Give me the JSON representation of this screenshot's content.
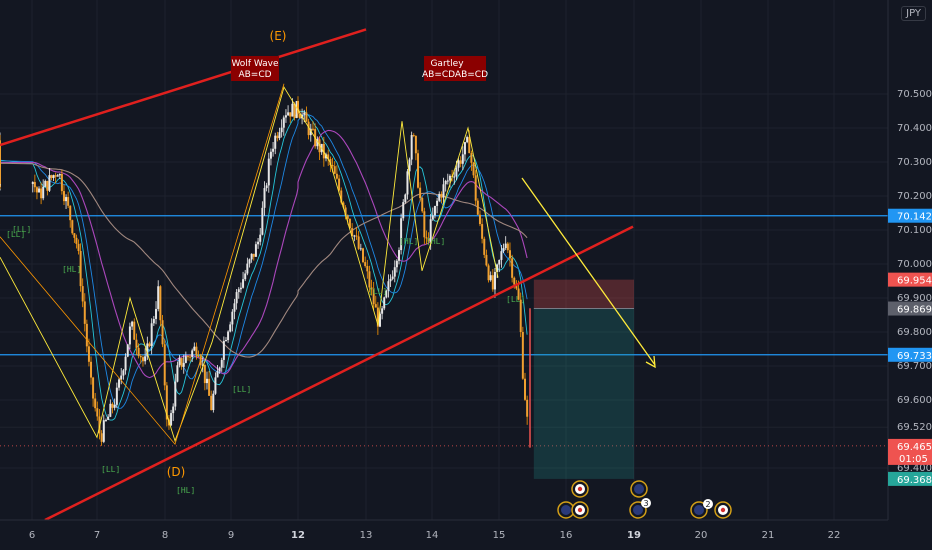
{
  "currency": "JPY",
  "chart_data": {
    "type": "candlestick",
    "y_ticks": [
      "70.500",
      "70.400",
      "70.300",
      "70.200",
      "70.100",
      "70.000",
      "69.900",
      "69.800",
      "69.700",
      "69.600",
      "69.520",
      "69.400"
    ],
    "x_ticks": [
      "6",
      "7",
      "8",
      "9",
      "12",
      "13",
      "14",
      "15",
      "16",
      "19",
      "20",
      "21",
      "22"
    ],
    "bold_x_ticks": [
      "12",
      "19"
    ],
    "ylim": [
      69.3,
      70.58
    ],
    "price_tags": [
      {
        "value": 70.142,
        "label": "70.142",
        "color": "#2196f3"
      },
      {
        "value": 69.954,
        "label": "69.954",
        "color": "#ef5350"
      },
      {
        "value": 69.869,
        "label": "69.869",
        "color": "#5d606b"
      },
      {
        "value": 69.733,
        "label": "69.733",
        "color": "#2196f3"
      },
      {
        "value": 69.465,
        "label": "69.465",
        "color": "#ef5350"
      },
      {
        "value": 69.368,
        "label": "69.368",
        "color": "#26a69a"
      }
    ],
    "countdown": "01:05",
    "horizontal_lines": [
      70.142,
      69.733
    ],
    "position": {
      "entry": 69.869,
      "stop": 69.954,
      "target": 69.368,
      "x_from": 15.52,
      "x_to": 17.73
    },
    "annotations": [
      {
        "label": "Wolf Wave",
        "sub": "AB=CD"
      },
      {
        "label": "Gartley",
        "sub": "AB=CDAB=CD"
      }
    ],
    "wave_points": [
      "(E)",
      "(D)"
    ],
    "pivot_labels": [
      "[LL]",
      "[HL]",
      "[LL]",
      "[HL]",
      "[LL]",
      "[LL]",
      "[HL]",
      "[LL]",
      "[HL]",
      "[LL]"
    ],
    "event_badges": [
      "3",
      "2"
    ],
    "colors": {
      "up": "#26a69a",
      "down": "#ef5350",
      "bg": "#131722",
      "trend": "#e0201e",
      "arrow": "#ffeb3b"
    }
  }
}
